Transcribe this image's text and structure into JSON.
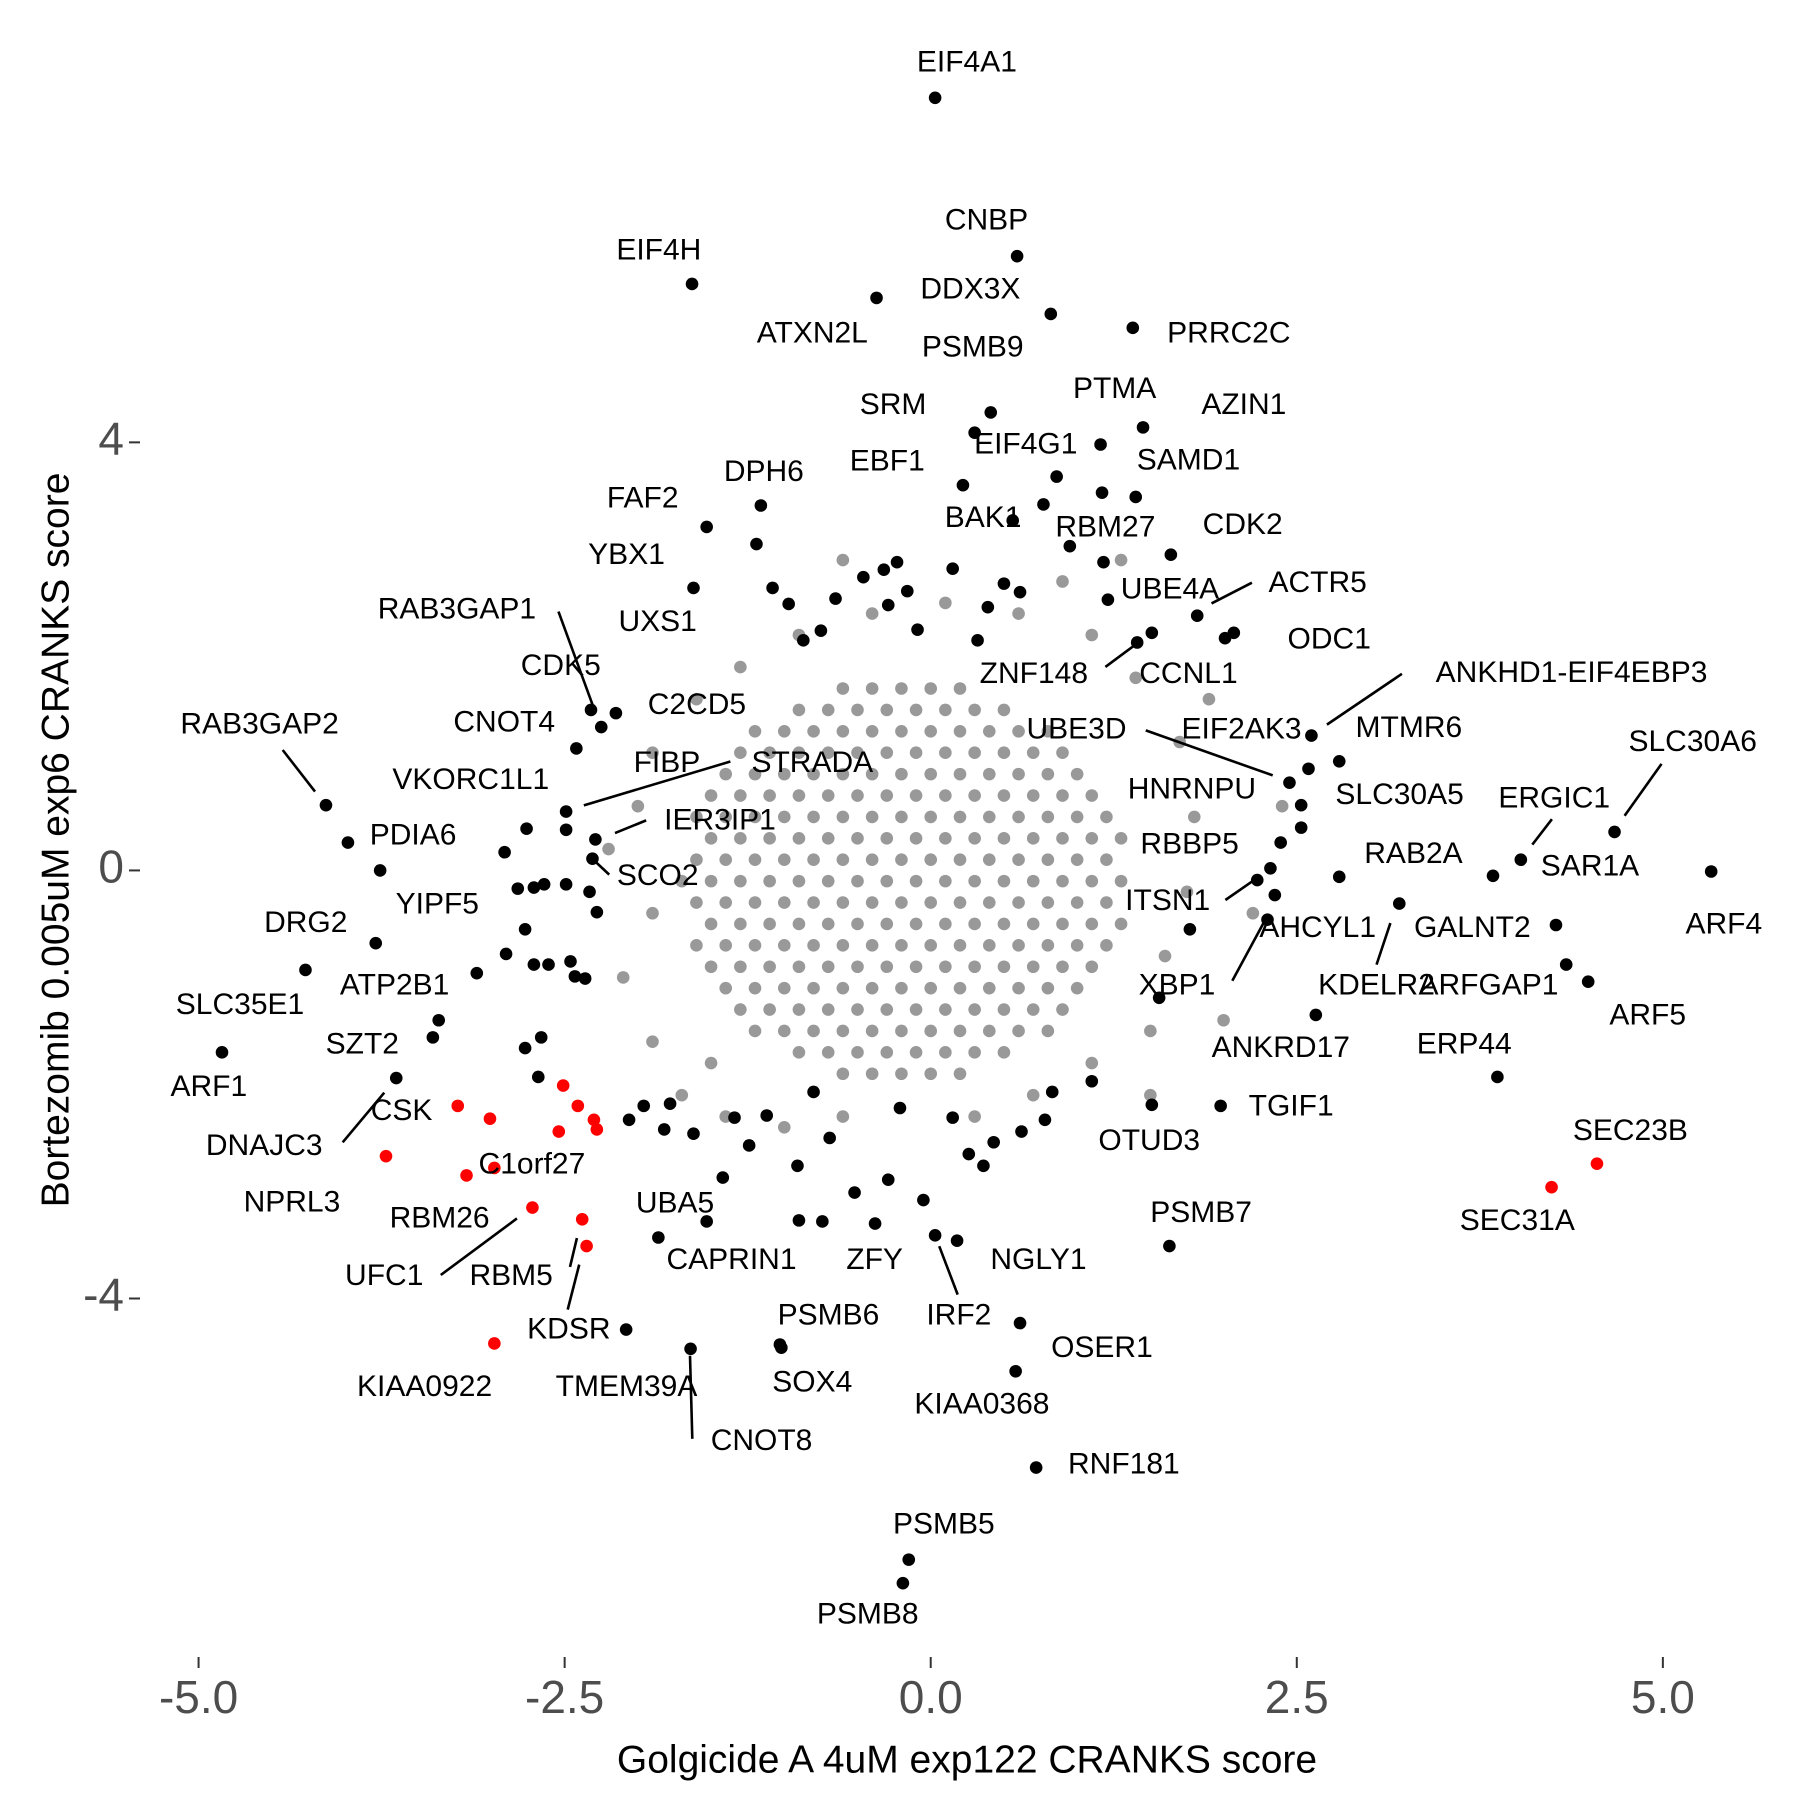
{
  "chart_data": {
    "type": "scatter",
    "xlabel": "Golgicide A 4uM exp122 CRANKS score",
    "ylabel": "Bortezomib 0.005uM exp6 CRANKS score",
    "xlim": [
      -5.4,
      5.8
    ],
    "ylim": [
      -7.35,
      7.9
    ],
    "xticks": [
      {
        "value": -5,
        "label": "-5.0"
      },
      {
        "value": -2.5,
        "label": "-2.5"
      },
      {
        "value": 0,
        "label": "0.0"
      },
      {
        "value": 2.5,
        "label": "2.5"
      },
      {
        "value": 5,
        "label": "5.0"
      }
    ],
    "yticks": [
      -4,
      0,
      4
    ],
    "series": [
      {
        "color": "#999999",
        "x": [
          -0.6,
          -0.4,
          -0.2,
          0,
          0.2,
          -0.9,
          -0.7,
          -0.5,
          -0.3,
          -0.1,
          0.1,
          0.3,
          0.5,
          -1.2,
          -1.0,
          -0.8,
          -0.6,
          -0.4,
          -0.2,
          0,
          0.2,
          0.4,
          0.6,
          0.8,
          -1.3,
          -1.1,
          -0.9,
          -0.7,
          -0.5,
          -0.3,
          -0.1,
          0.1,
          0.3,
          0.5,
          0.7,
          0.9,
          -1.4,
          -1.2,
          -1.0,
          -0.8,
          -0.6,
          -0.4,
          -0.2,
          0,
          0.2,
          0.4,
          0.6,
          0.8,
          1.0,
          -1.5,
          -1.3,
          -1.1,
          -0.9,
          -0.7,
          -0.5,
          -0.3,
          -0.1,
          0.1,
          0.3,
          0.5,
          0.7,
          0.9,
          1.1,
          -1.6,
          -1.4,
          -1.2,
          -1.0,
          -0.8,
          -0.6,
          -0.4,
          -0.2,
          0,
          0.2,
          0.4,
          0.6,
          0.8,
          1.0,
          1.2,
          -1.5,
          -1.3,
          -1.1,
          -0.9,
          -0.7,
          -0.5,
          -0.3,
          -0.1,
          0.1,
          0.3,
          0.5,
          0.7,
          0.9,
          1.1,
          1.3,
          -1.6,
          -1.4,
          -1.2,
          -1.0,
          -0.8,
          -0.6,
          -0.4,
          -0.2,
          0,
          0.2,
          0.4,
          0.6,
          0.8,
          1.0,
          1.2,
          -1.7,
          -1.5,
          -1.3,
          -1.1,
          -0.9,
          -0.7,
          -0.5,
          -0.3,
          -0.1,
          0.1,
          0.3,
          0.5,
          0.7,
          0.9,
          1.1,
          1.3,
          -1.6,
          -1.4,
          -1.2,
          -1.0,
          -0.8,
          -0.6,
          -0.4,
          -0.2,
          0,
          0.2,
          0.4,
          0.6,
          0.8,
          1.0,
          1.2,
          -1.5,
          -1.3,
          -1.1,
          -0.9,
          -0.7,
          -0.5,
          -0.3,
          -0.1,
          0.1,
          0.3,
          0.5,
          0.7,
          0.9,
          1.1,
          1.3,
          -1.6,
          -1.4,
          -1.2,
          -1.0,
          -0.8,
          -0.6,
          -0.4,
          -0.2,
          0,
          0.2,
          0.4,
          0.6,
          0.8,
          1.0,
          1.2,
          -1.5,
          -1.3,
          -1.1,
          -0.9,
          -0.7,
          -0.5,
          -0.3,
          -0.1,
          0.1,
          0.3,
          0.5,
          0.7,
          0.9,
          1.1,
          -1.4,
          -1.2,
          -1.0,
          -0.8,
          -0.6,
          -0.4,
          -0.2,
          0,
          0.2,
          0.4,
          0.6,
          0.8,
          1.0,
          -1.3,
          -1.1,
          -0.9,
          -0.7,
          -0.5,
          -0.3,
          -0.1,
          0.1,
          0.3,
          0.5,
          0.7,
          0.9,
          -1.2,
          -1.0,
          -0.8,
          -0.6,
          -0.4,
          -0.2,
          0,
          0.2,
          0.4,
          0.6,
          0.8,
          -0.9,
          -0.7,
          -0.5,
          -0.3,
          -0.1,
          0.1,
          0.3,
          0.5,
          -0.6,
          -0.4,
          -0.2,
          0,
          0.2,
          -1.9,
          -2.0,
          -1.9,
          -2.1,
          -1.9,
          -1.7,
          -1.4,
          -1.0,
          -0.6,
          0.3,
          0.7,
          1.1,
          1.5,
          1.6,
          1.75,
          1.8,
          1.7,
          1.4,
          1.1,
          0.6,
          0.1,
          -0.4,
          -0.9,
          -1.3,
          -1.6,
          1.3,
          2.2,
          2.0,
          1.9,
          -1.5,
          -2.2,
          0.9,
          -0.6,
          1.5,
          2.4
        ],
        "y": [
          1.7,
          1.7,
          1.7,
          1.7,
          1.7,
          1.5,
          1.5,
          1.5,
          1.5,
          1.5,
          1.5,
          1.5,
          1.5,
          1.3,
          1.3,
          1.3,
          1.3,
          1.3,
          1.3,
          1.3,
          1.3,
          1.3,
          1.3,
          1.3,
          1.1,
          1.1,
          1.1,
          1.1,
          1.1,
          1.1,
          1.1,
          1.1,
          1.1,
          1.1,
          1.1,
          1.1,
          0.9,
          0.9,
          0.9,
          0.9,
          0.9,
          0.9,
          0.9,
          0.9,
          0.9,
          0.9,
          0.9,
          0.9,
          0.9,
          0.7,
          0.7,
          0.7,
          0.7,
          0.7,
          0.7,
          0.7,
          0.7,
          0.7,
          0.7,
          0.7,
          0.7,
          0.7,
          0.7,
          0.5,
          0.5,
          0.5,
          0.5,
          0.5,
          0.5,
          0.5,
          0.5,
          0.5,
          0.5,
          0.5,
          0.5,
          0.5,
          0.5,
          0.5,
          0.3,
          0.3,
          0.3,
          0.3,
          0.3,
          0.3,
          0.3,
          0.3,
          0.3,
          0.3,
          0.3,
          0.3,
          0.3,
          0.3,
          0.3,
          0.1,
          0.1,
          0.1,
          0.1,
          0.1,
          0.1,
          0.1,
          0.1,
          0.1,
          0.1,
          0.1,
          0.1,
          0.1,
          0.1,
          0.1,
          -0.1,
          -0.1,
          -0.1,
          -0.1,
          -0.1,
          -0.1,
          -0.1,
          -0.1,
          -0.1,
          -0.1,
          -0.1,
          -0.1,
          -0.1,
          -0.1,
          -0.1,
          -0.1,
          -0.3,
          -0.3,
          -0.3,
          -0.3,
          -0.3,
          -0.3,
          -0.3,
          -0.3,
          -0.3,
          -0.3,
          -0.3,
          -0.3,
          -0.3,
          -0.3,
          -0.3,
          -0.5,
          -0.5,
          -0.5,
          -0.5,
          -0.5,
          -0.5,
          -0.5,
          -0.5,
          -0.5,
          -0.5,
          -0.5,
          -0.5,
          -0.5,
          -0.5,
          -0.5,
          -0.7,
          -0.7,
          -0.7,
          -0.7,
          -0.7,
          -0.7,
          -0.7,
          -0.7,
          -0.7,
          -0.7,
          -0.7,
          -0.7,
          -0.7,
          -0.7,
          -0.7,
          -0.9,
          -0.9,
          -0.9,
          -0.9,
          -0.9,
          -0.9,
          -0.9,
          -0.9,
          -0.9,
          -0.9,
          -0.9,
          -0.9,
          -0.9,
          -0.9,
          -1.1,
          -1.1,
          -1.1,
          -1.1,
          -1.1,
          -1.1,
          -1.1,
          -1.1,
          -1.1,
          -1.1,
          -1.1,
          -1.1,
          -1.1,
          -1.3,
          -1.3,
          -1.3,
          -1.3,
          -1.3,
          -1.3,
          -1.3,
          -1.3,
          -1.3,
          -1.3,
          -1.3,
          -1.3,
          -1.5,
          -1.5,
          -1.5,
          -1.5,
          -1.5,
          -1.5,
          -1.5,
          -1.5,
          -1.5,
          -1.5,
          -1.5,
          -1.7,
          -1.7,
          -1.7,
          -1.7,
          -1.7,
          -1.7,
          -1.7,
          -1.7,
          -1.9,
          -1.9,
          -1.9,
          -1.9,
          -1.9,
          1.1,
          0.6,
          -0.4,
          -1.0,
          -1.6,
          -2.1,
          -2.3,
          -2.4,
          -2.3,
          -2.3,
          -2.1,
          -1.8,
          -1.5,
          -0.8,
          -0.2,
          0.5,
          1.2,
          1.8,
          2.2,
          2.4,
          2.5,
          2.4,
          2.2,
          1.9,
          1.6,
          2.9,
          -0.4,
          -1.4,
          1.6,
          -1.8,
          0.2,
          2.7,
          2.9,
          -2.1,
          0.6
        ]
      },
      {
        "color": "#000000",
        "x": [
          -2.91,
          -2.82,
          -2.71,
          -2.64,
          -2.49,
          -2.33,
          -2.28,
          -2.77,
          -2.9,
          -2.71,
          -2.61,
          -2.46,
          -2.43,
          -2.36,
          -2.66,
          -2.77,
          -2.68,
          -2.06,
          -1.96,
          -1.78,
          -1.82,
          -1.62,
          -1.42,
          -1.34,
          -1.24,
          -1.12,
          -0.91,
          -0.9,
          -0.74,
          -0.8,
          -0.69,
          -0.52,
          -0.29,
          -0.21,
          -0.05,
          0.15,
          0.26,
          0.36,
          0.43,
          0.62,
          0.78,
          0.83,
          1.1,
          -1.08,
          -0.97,
          -0.87,
          -0.75,
          -0.65,
          -0.46,
          -0.32,
          -0.23,
          -0.29,
          -0.16,
          -0.09,
          0.15,
          0.32,
          0.39,
          0.5,
          0.61,
          0.77,
          1.17,
          1.18,
          2.07,
          2.39,
          1.77,
          1.56
        ],
        "y": [
          0.17,
          -0.17,
          -0.16,
          -0.13,
          -0.13,
          -0.2,
          -0.39,
          -0.55,
          -0.78,
          -0.88,
          -0.88,
          -0.85,
          -0.99,
          -1.01,
          -1.56,
          -1.66,
          -1.93,
          -2.33,
          -2.2,
          -2.18,
          -2.42,
          -2.46,
          -2.87,
          -2.31,
          -2.57,
          -2.29,
          -2.76,
          -3.27,
          -3.28,
          -2.07,
          -2.5,
          -3.01,
          -2.89,
          -2.22,
          -3.08,
          -2.31,
          -2.65,
          -2.76,
          -2.54,
          -2.44,
          -2.33,
          -2.07,
          -1.97,
          2.64,
          2.49,
          2.15,
          2.24,
          2.54,
          2.74,
          2.81,
          2.88,
          2.48,
          2.61,
          2.25,
          2.82,
          2.15,
          2.46,
          2.68,
          2.6,
          3.42,
          3.53,
          2.88,
          2.22,
          0.26,
          -0.55,
          -1.19
        ]
      },
      {
        "color": "#000000",
        "x": [
          0.03,
          0.59,
          -1.63,
          0.82,
          -0.37,
          1.38,
          0.41,
          0.3,
          1.16,
          1.45,
          0.86,
          1.4,
          0.22,
          -1.16,
          -1.53,
          0.56,
          0.95,
          1.64,
          -1.62,
          -1.19,
          1.21,
          1.82,
          2.01,
          -2.32,
          -2.25,
          -2.15,
          -2.42,
          1.41,
          1.51,
          2.6,
          2.45,
          2.58,
          2.79,
          4.67,
          -4.13,
          -2.76,
          -2.49,
          -2.49,
          -2.29,
          -2.31,
          2.53,
          2.53,
          4.03,
          -3.98,
          -3.76,
          2.32,
          2.79,
          3.84,
          5.33,
          2.23,
          2.35,
          4.27,
          3.2,
          4.34,
          4.49,
          -3.79,
          -3.1,
          2.3,
          -4.27,
          2.63,
          3.87,
          -3.4,
          -4.84,
          -3.65,
          -3.36,
          1.98,
          1.51,
          1.63,
          -1.86,
          -1.53,
          -0.38,
          0.18,
          0.03,
          -2.08,
          -1.64,
          -1.03,
          -1.02,
          0.61,
          0.58,
          0.72,
          -0.15,
          -0.19
        ],
        "y": [
          7.22,
          5.74,
          5.48,
          5.2,
          5.35,
          5.07,
          4.28,
          4.09,
          3.98,
          4.14,
          3.68,
          3.49,
          3.6,
          3.41,
          3.21,
          3.27,
          3.03,
          2.95,
          2.64,
          3.05,
          2.53,
          2.38,
          2.17,
          1.5,
          1.34,
          1.47,
          1.14,
          2.13,
          2.22,
          1.26,
          0.82,
          0.95,
          1.02,
          0.36,
          0.61,
          0.39,
          0.55,
          0.38,
          0.29,
          0.11,
          0.61,
          0.4,
          0.1,
          0.26,
          0.0,
          0.02,
          -0.06,
          -0.05,
          -0.01,
          -0.09,
          -0.23,
          -0.51,
          -0.31,
          -0.88,
          -1.04,
          -0.68,
          -0.96,
          -0.46,
          -0.93,
          -1.35,
          -1.93,
          -1.56,
          -1.7,
          -1.94,
          -1.4,
          -2.2,
          -2.19,
          -3.51,
          -3.43,
          -3.28,
          -3.3,
          -3.46,
          -3.41,
          -4.29,
          -4.47,
          -4.43,
          -4.46,
          -4.23,
          -4.68,
          -5.58,
          -6.44,
          -6.66
        ],
        "labels": [
          "EIF4A1",
          "CNBP",
          "EIF4H",
          "DDX3X",
          "ATXN2L",
          "PRRC2C",
          "PSMB9",
          "SRM",
          "PTMA",
          "AZIN1",
          "EIF4G1",
          "SAMD1",
          "EBF1",
          "DPH6",
          "FAF2",
          "BAK1",
          "RBM27",
          "CDK2",
          "YBX1",
          "UXS1",
          "UBE4A",
          "ACTR5",
          "ODC1",
          "RAB3GAP1",
          "CDK5",
          "C2CD5",
          "CNOT4",
          "ZNF148",
          "CCNL1",
          "ANKHD1-EIF4EBP3",
          "UBE3D",
          "EIF2AK3",
          "MTMR6",
          "SLC30A6",
          "RAB3GAP2",
          "VKORC1L1",
          "STRADA",
          "FIBP",
          "IER3IP1",
          "SCO2",
          "HNRNPU",
          "SLC30A5",
          "ERGIC1",
          "PDIA6",
          "YIPF5",
          "RBBP5",
          "RAB2A",
          "SAR1A",
          "ARF4",
          "ITSN1",
          "AHCYL1",
          "GALNT2",
          "KDELR2",
          "ARFGAP1",
          "ARF5",
          "DRG2",
          "ATP2B1",
          "XBP1",
          "SLC35E1",
          "ANKRD17",
          "ERP44",
          "SZT2",
          "ARF1",
          "DNAJC3",
          "CSK",
          "TGIF1",
          "OTUD3",
          "PSMB7",
          "UBA5",
          "CAPRIN1",
          "ZFY",
          "NGLY1",
          "IRF2",
          "TMEM39A",
          "CNOT8",
          "PSMB6",
          "SOX4",
          "OSER1",
          "KIAA0368",
          "RNF181",
          "PSMB5",
          "PSMB8"
        ]
      },
      {
        "color": "#ff0000",
        "x": [
          -3.23,
          -3.01,
          -2.51,
          -2.41,
          -2.54,
          -2.3,
          -2.28
        ],
        "y": [
          -2.2,
          -2.32,
          -2.01,
          -2.2,
          -2.44,
          -2.33,
          -2.42
        ]
      },
      {
        "color": "#ff0000",
        "x": [
          4.55,
          4.24,
          -3.72,
          -2.98,
          -3.17,
          -2.72,
          -2.38,
          -2.35,
          -2.98
        ],
        "y": [
          -2.74,
          -2.96,
          -2.67,
          -2.78,
          -2.85,
          -3.15,
          -3.26,
          -3.51,
          -4.42
        ],
        "labels": [
          "SEC23B",
          "SEC31A",
          "NPRL3",
          "C1orf27",
          "RBM26",
          "UFC1",
          "RBM5",
          "KDSR",
          "KIAA0922"
        ]
      }
    ]
  }
}
